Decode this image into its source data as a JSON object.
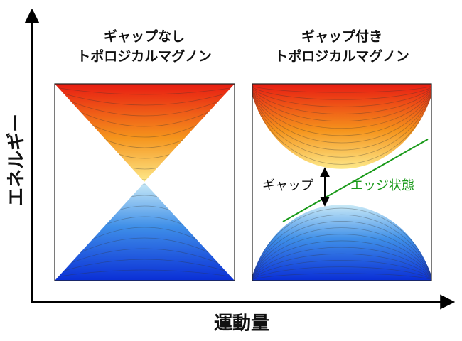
{
  "axes": {
    "y_label": "エネルギー",
    "x_label": "運動量"
  },
  "panels": [
    {
      "title": [
        "ギャップなし",
        "トポロジカルマグノン"
      ]
    },
    {
      "title": [
        "ギャップ付き",
        "トポロジカルマグノン"
      ],
      "gap_label": "ギャップ",
      "edge_label": "エッジ状態"
    }
  ]
}
